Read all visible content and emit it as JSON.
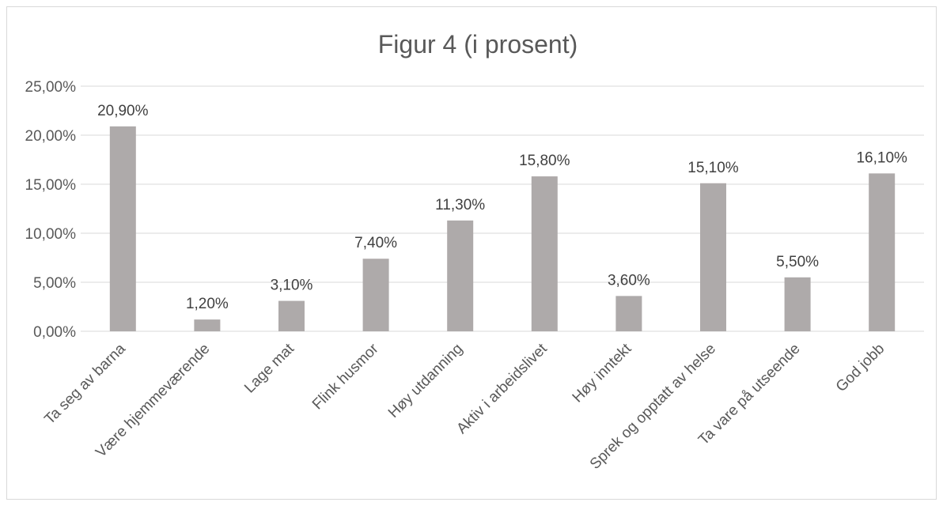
{
  "chart_data": {
    "type": "bar",
    "title": "Figur 4 (i prosent)",
    "categories": [
      "Ta seg av barna",
      "Være hjemmeværende",
      "Lage mat",
      "Flink husmor",
      "Høy utdanning",
      "Aktiv i arbeidslivet",
      "Høy inntekt",
      "Sprek og opptatt av helse",
      "Ta vare på utseende",
      "God jobb"
    ],
    "values": [
      20.9,
      1.2,
      3.1,
      7.4,
      11.3,
      15.8,
      3.6,
      15.1,
      5.5,
      16.1
    ],
    "data_labels": [
      "20,90%",
      "1,20%",
      "3,10%",
      "7,40%",
      "11,30%",
      "15,80%",
      "3,60%",
      "15,10%",
      "5,50%",
      "16,10%"
    ],
    "y_ticks": [
      0,
      5,
      10,
      15,
      20,
      25
    ],
    "y_tick_labels": [
      "0,00%",
      "5,00%",
      "10,00%",
      "15,00%",
      "20,00%",
      "25,00%"
    ],
    "ylim": [
      0,
      25
    ],
    "grid": true,
    "legend": "none",
    "bar_color": "#aeaaaa",
    "grid_color": "#d9d9d9"
  }
}
